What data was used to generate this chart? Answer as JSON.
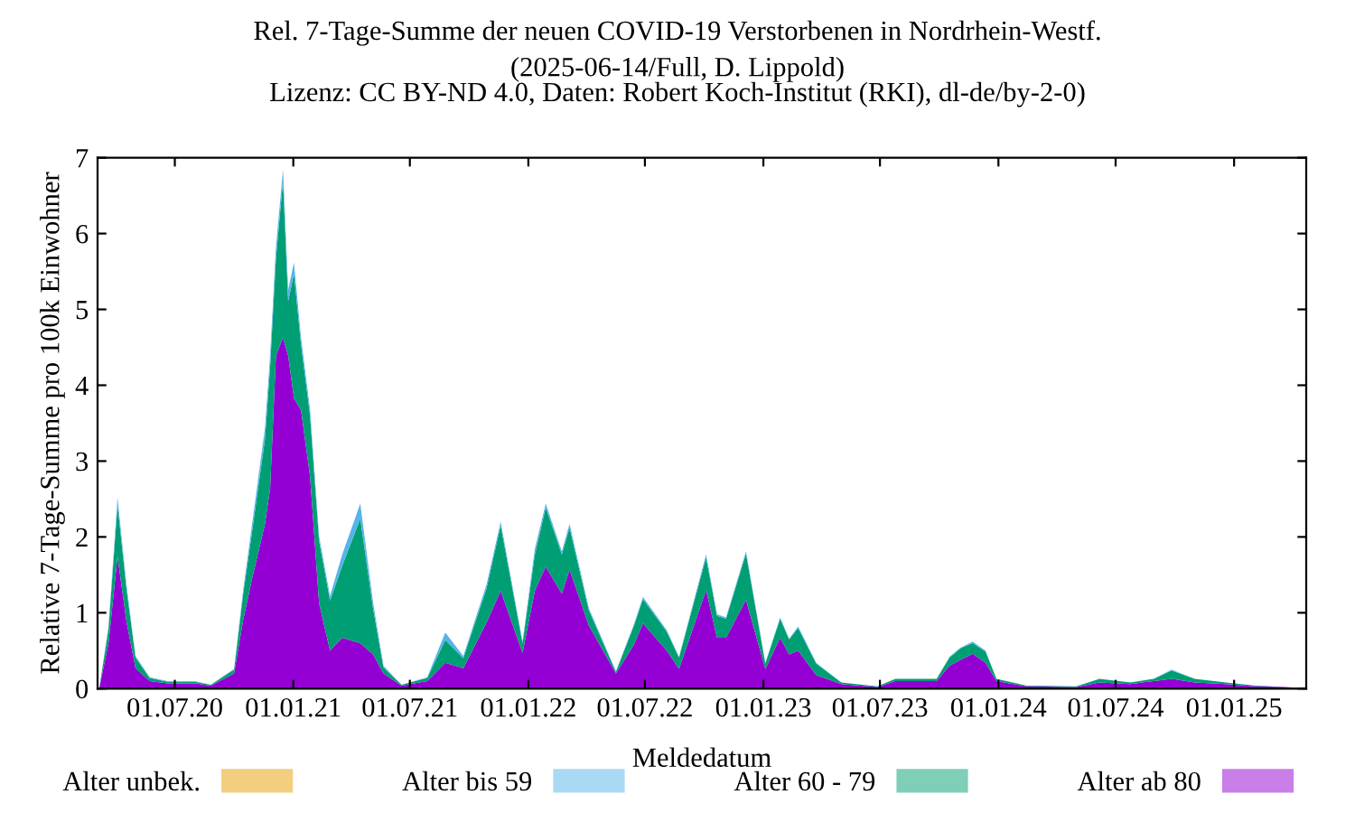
{
  "chart_data": {
    "type": "area",
    "stacked": true,
    "title": "Rel. 7-Tage-Summe der neuen COVID-19 Verstorbenen in Nordrhein-Westf.",
    "subtitle": "(2025-06-14/Full, D. Lippold)\nLizenz: CC BY-ND 4.0, Daten: Robert Koch-Institut (RKI), dl-de/by-2-0)",
    "xlabel": "Meldedatum",
    "ylabel": "Relative 7-Tage-Summe pro 100k Einwohner",
    "x": [
      "2020-03-06",
      "2020-03-20",
      "2020-04-03",
      "2020-04-17",
      "2020-05-01",
      "2020-05-23",
      "2020-06-20",
      "2020-08-01",
      "2020-08-26",
      "2020-10-01",
      "2020-10-15",
      "2020-10-29",
      "2020-11-18",
      "2020-11-26",
      "2020-12-05",
      "2020-12-16",
      "2020-12-24",
      "2021-01-02",
      "2021-01-13",
      "2021-01-27",
      "2021-02-10",
      "2021-02-27",
      "2021-03-18",
      "2021-04-15",
      "2021-05-05",
      "2021-05-21",
      "2021-06-18",
      "2021-07-28",
      "2021-08-25",
      "2021-09-22",
      "2021-10-28",
      "2021-11-19",
      "2021-12-23",
      "2022-01-11",
      "2022-01-28",
      "2022-02-22",
      "2022-03-06",
      "2022-04-05",
      "2022-05-17",
      "2022-06-14",
      "2022-06-28",
      "2022-08-04",
      "2022-08-23",
      "2022-10-04",
      "2022-10-21",
      "2022-11-04",
      "2022-12-05",
      "2023-01-04",
      "2023-01-27",
      "2023-02-10",
      "2023-02-24",
      "2023-03-24",
      "2023-05-02",
      "2023-06-27",
      "2023-07-25",
      "2023-09-27",
      "2023-10-17",
      "2023-11-03",
      "2023-11-22",
      "2023-12-12",
      "2023-12-29",
      "2024-02-14",
      "2024-05-01",
      "2024-06-06",
      "2024-07-24",
      "2024-08-29",
      "2024-09-26",
      "2024-11-01",
      "2024-12-19",
      "2025-02-04",
      "2025-03-21",
      "2025-04-10"
    ],
    "series": [
      {
        "name": "Alter ab 80",
        "color": "#9400d3",
        "values": [
          0.02,
          0.6,
          1.74,
          0.88,
          0.27,
          0.1,
          0.07,
          0.07,
          0.04,
          0.2,
          0.9,
          1.45,
          2.17,
          2.64,
          4.39,
          4.63,
          4.39,
          3.83,
          3.67,
          2.8,
          1.13,
          0.5,
          0.67,
          0.6,
          0.45,
          0.2,
          0.04,
          0.1,
          0.34,
          0.27,
          0.87,
          1.29,
          0.47,
          1.29,
          1.61,
          1.25,
          1.57,
          0.83,
          0.2,
          0.58,
          0.86,
          0.5,
          0.26,
          1.3,
          0.67,
          0.67,
          1.17,
          0.26,
          0.67,
          0.45,
          0.5,
          0.18,
          0.06,
          0.02,
          0.1,
          0.1,
          0.3,
          0.38,
          0.46,
          0.34,
          0.1,
          0.03,
          0.02,
          0.08,
          0.06,
          0.1,
          0.13,
          0.08,
          0.06,
          0.03,
          0.02,
          0.01
        ]
      },
      {
        "name": "Alter 60 - 79",
        "color": "#009e73",
        "values": [
          0,
          0.19,
          0.68,
          0.43,
          0.14,
          0.04,
          0.02,
          0.02,
          0.01,
          0.05,
          0.34,
          0.62,
          1.12,
          1.61,
          1.28,
          2.07,
          0.72,
          1.64,
          0.86,
          0.8,
          0.82,
          0.66,
          0.95,
          1.64,
          0.6,
          0.08,
          0.01,
          0.04,
          0.3,
          0.13,
          0.45,
          0.86,
          0.13,
          0.47,
          0.78,
          0.52,
          0.55,
          0.2,
          0.02,
          0.25,
          0.32,
          0.25,
          0.15,
          0.43,
          0.29,
          0.25,
          0.61,
          0.07,
          0.25,
          0.2,
          0.3,
          0.15,
          0.02,
          0.01,
          0.03,
          0.03,
          0.11,
          0.15,
          0.14,
          0.15,
          0.03,
          0.01,
          0.01,
          0.05,
          0.02,
          0.03,
          0.11,
          0.05,
          0.02,
          0.01,
          0,
          0
        ]
      },
      {
        "name": "Alter bis 59",
        "color": "#56b4e9",
        "values": [
          0,
          0.03,
          0.1,
          0.05,
          0.02,
          0.01,
          0.01,
          0.01,
          0,
          0.01,
          0.05,
          0.1,
          0.15,
          0.15,
          0.15,
          0.15,
          0.15,
          0.15,
          0.1,
          0.08,
          0.06,
          0.06,
          0.15,
          0.2,
          0.08,
          0.02,
          0,
          0.01,
          0.1,
          0.03,
          0.05,
          0.05,
          0.02,
          0.08,
          0.05,
          0.04,
          0.05,
          0.03,
          0.01,
          0.02,
          0.03,
          0.02,
          0.01,
          0.04,
          0.02,
          0.02,
          0.03,
          0.01,
          0.02,
          0.01,
          0.02,
          0.01,
          0,
          0,
          0,
          0,
          0.01,
          0.01,
          0.02,
          0.01,
          0,
          0,
          0,
          0,
          0,
          0,
          0.01,
          0,
          0,
          0,
          0,
          0
        ]
      },
      {
        "name": "Alter unbek.",
        "color": "#e69f00",
        "values": [
          null,
          null,
          null,
          null,
          null,
          null,
          null,
          null,
          null,
          null,
          null,
          null,
          null,
          null,
          null,
          null,
          null,
          null,
          null,
          null,
          null,
          null,
          null,
          null,
          null,
          null,
          null,
          null,
          null,
          null,
          null,
          null,
          null,
          null,
          null,
          null,
          null,
          null,
          null,
          null,
          null,
          null,
          null,
          null,
          null,
          null,
          null,
          null,
          null,
          null,
          null,
          null,
          null,
          null,
          null,
          null,
          null,
          null,
          null,
          null,
          null,
          null,
          null,
          null,
          null,
          null,
          null,
          null,
          null,
          null,
          null,
          null
        ]
      }
    ],
    "xlim": [
      "2020-03-03",
      "2025-04-23"
    ],
    "xticks": [
      {
        "value": "2020-07-01",
        "label": "01.07.20"
      },
      {
        "value": "2021-01-01",
        "label": "01.01.21"
      },
      {
        "value": "2021-07-01",
        "label": "01.07.21"
      },
      {
        "value": "2022-01-01",
        "label": "01.01.22"
      },
      {
        "value": "2022-07-01",
        "label": "01.07.22"
      },
      {
        "value": "2023-01-01",
        "label": "01.01.23"
      },
      {
        "value": "2023-07-01",
        "label": "01.07.23"
      },
      {
        "value": "2024-01-01",
        "label": "01.01.24"
      },
      {
        "value": "2024-07-01",
        "label": "01.07.24"
      },
      {
        "value": "2025-01-01",
        "label": "01.01.25"
      }
    ],
    "ylim": [
      0,
      7
    ],
    "yticks": [
      0,
      1,
      2,
      3,
      4,
      5,
      6,
      7
    ],
    "legend": "bottom",
    "grid": false
  }
}
